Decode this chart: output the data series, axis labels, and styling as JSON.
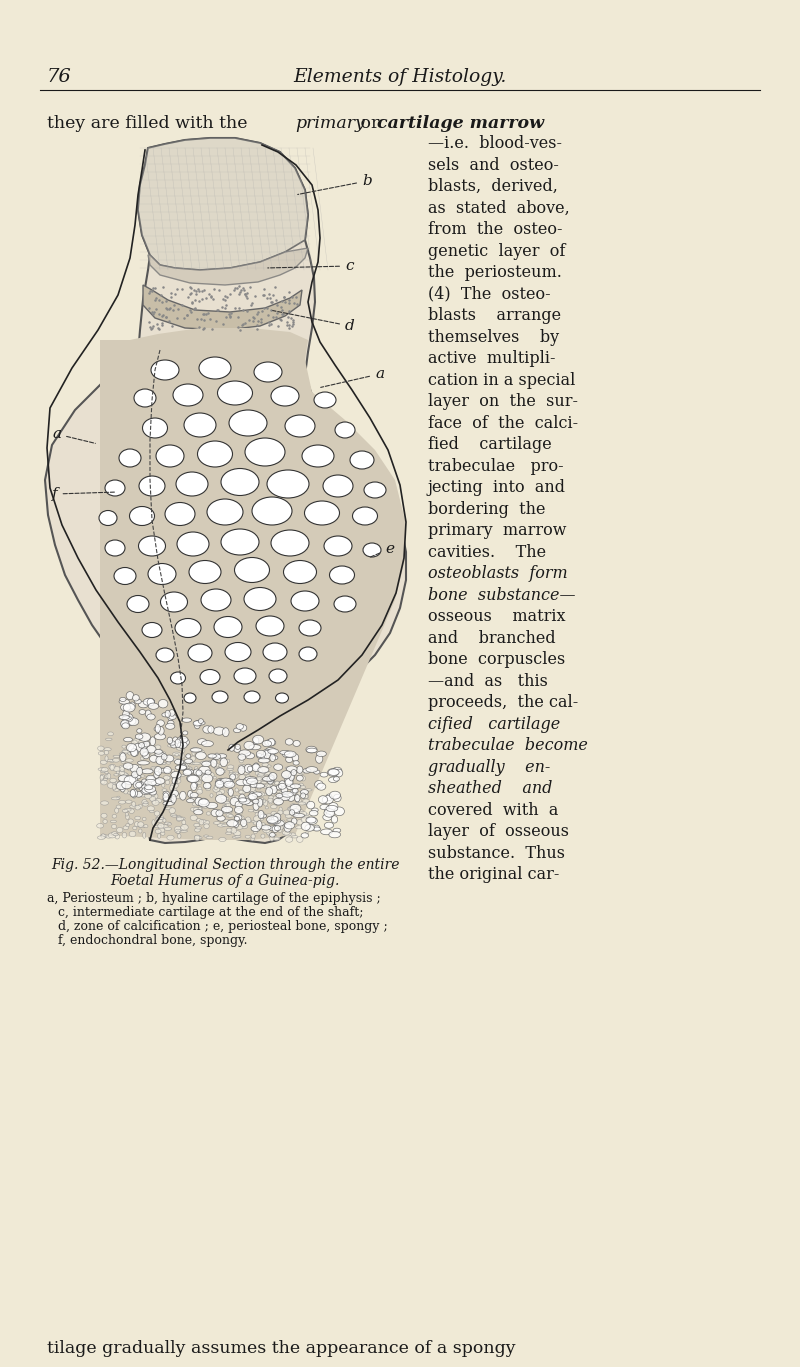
{
  "bg_color": "#f0ead6",
  "page_number": "76",
  "header_title": "Elements of Histology.",
  "text_color": "#1a1a1a",
  "first_paragraph": "they are filled with the ",
  "first_para_italic": "primary",
  "first_para_middle": " or ",
  "first_para_italic2": "cartilage marrow",
  "right_column_lines": [
    "—i.e.  blood-ves-",
    "sels  and  osteo-",
    "blasts,  derived,",
    "as  stated  above,",
    "from  the  osteo-",
    "genetic  layer  of",
    "the  periosteum.",
    "(4)  The  osteo-",
    "blasts    arrange",
    "themselves    by",
    "active  multipli-",
    "cation in a special",
    "layer  on  the  sur-",
    "face  of  the  calci-",
    "fied    cartilage",
    "trabeculae   pro-",
    "jecting  into  and",
    "bordering  the",
    "primary  marrow",
    "cavities.    The",
    "osteoblasts  form",
    "bone  substance—",
    "osseous    matrix",
    "and    branched",
    "bone  corpuscles",
    "—and  as   this",
    "proceeds,  the cal-",
    "cified   cartilage",
    "trabeculae  become",
    "gradually    en-",
    "sheathed    and",
    "covered  with  a",
    "layer  of  osseous",
    "substance.  Thus",
    "the original car-"
  ],
  "right_italic_lines": [
    20,
    21,
    27,
    28,
    29,
    30
  ],
  "caption_line1": "Fig. 52.—Longitudinal Section through the entire",
  "caption_line2": "Foetal Humerus of a Guinea-pig.",
  "footnote_lines": [
    "a, Periosteum ; b, hyaline cartilage of the epiphysis ;",
    "c, intermediate cartilage at the end of the shaft;",
    "d, zone of calcification ; e, periosteal bone, spongy ;",
    "f, endochondral bone, spongy."
  ],
  "last_line": "tilage gradually assumes the appearance of a spongy",
  "periosteum_left_x": [
    145,
    142,
    138,
    135,
    130,
    118,
    98,
    72,
    50,
    47,
    50,
    62,
    78,
    96,
    118,
    140,
    158,
    170,
    180,
    183,
    180,
    173,
    163,
    153,
    150
  ],
  "periosteum_left_y": [
    150,
    170,
    195,
    225,
    258,
    295,
    330,
    368,
    408,
    448,
    488,
    525,
    558,
    590,
    622,
    652,
    678,
    700,
    722,
    745,
    768,
    790,
    812,
    828,
    840
  ],
  "periosteum_right_x": [
    262,
    278,
    296,
    312,
    318,
    320,
    318,
    312,
    308,
    312,
    320,
    335,
    352,
    370,
    388,
    400,
    406,
    404,
    396,
    382,
    362,
    338,
    308,
    280,
    258,
    238,
    228
  ],
  "periosteum_right_y": [
    145,
    152,
    165,
    185,
    210,
    238,
    262,
    282,
    302,
    322,
    342,
    365,
    390,
    418,
    450,
    485,
    522,
    558,
    593,
    625,
    655,
    680,
    700,
    716,
    730,
    742,
    750
  ]
}
